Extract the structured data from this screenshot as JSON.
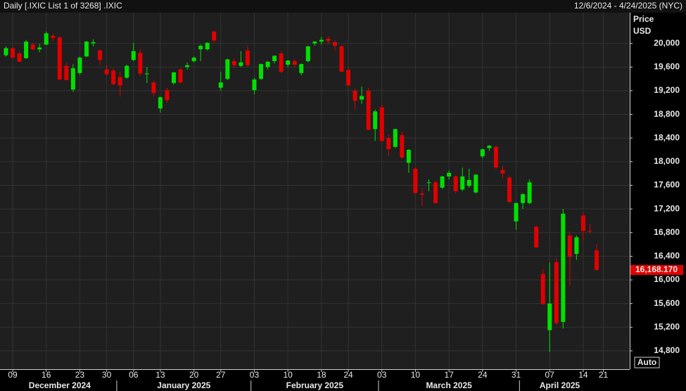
{
  "chart_data": {
    "type": "candlestick",
    "title": "Daily [.IXIC List 1 of 3268] .IXIC",
    "date_range": "12/6/2024 - 4/24/2025 (NYC)",
    "ylabel": "Price",
    "yunit": "USD",
    "scale_button": "Auto",
    "up_color": "#00e000",
    "down_color": "#e00000",
    "ylim": [
      14490,
      20520
    ],
    "yticks": [
      {
        "value": 14800,
        "label": "14,800"
      },
      {
        "value": 15200,
        "label": "15,200"
      },
      {
        "value": 15600,
        "label": "15,600"
      },
      {
        "value": 16000,
        "label": "16,000"
      },
      {
        "value": 16400,
        "label": "16,400"
      },
      {
        "value": 16800,
        "label": "16,800"
      },
      {
        "value": 17200,
        "label": "17,200"
      },
      {
        "value": 17600,
        "label": "17,600"
      },
      {
        "value": 18000,
        "label": "18,000"
      },
      {
        "value": 18400,
        "label": "18,400"
      },
      {
        "value": 18800,
        "label": "18,800"
      },
      {
        "value": 19200,
        "label": "19,200"
      },
      {
        "value": 19600,
        "label": "19,600"
      },
      {
        "value": 20000,
        "label": "20,000"
      }
    ],
    "xticks": [
      {
        "value": "12/9/2024",
        "label": "09"
      },
      {
        "value": "12/16/2024",
        "label": "16"
      },
      {
        "value": "12/23/2024",
        "label": "23"
      },
      {
        "value": "12/30/2024",
        "label": "30"
      },
      {
        "value": "1/6/2025",
        "label": "06"
      },
      {
        "value": "1/13/2025",
        "label": "13"
      },
      {
        "value": "1/20/2025",
        "label": "20"
      },
      {
        "value": "1/27/2025",
        "label": "27"
      },
      {
        "value": "2/3/2025",
        "label": "03"
      },
      {
        "value": "2/10/2025",
        "label": "10"
      },
      {
        "value": "2/18/2025",
        "label": "18"
      },
      {
        "value": "2/24/2025",
        "label": "24"
      },
      {
        "value": "3/3/2025",
        "label": "03"
      },
      {
        "value": "3/10/2025",
        "label": "10"
      },
      {
        "value": "3/17/2025",
        "label": "17"
      },
      {
        "value": "3/24/2025",
        "label": "24"
      },
      {
        "value": "3/31/2025",
        "label": "31"
      },
      {
        "value": "4/7/2025",
        "label": "07"
      },
      {
        "value": "4/14/2025",
        "label": "14"
      },
      {
        "value": "4/21/2025",
        "label": "21"
      }
    ],
    "months": [
      "December 2024",
      "January 2025",
      "February 2025",
      "March 2025",
      "April 2025"
    ],
    "last_price": {
      "value": 16168.17,
      "label": "16,168.170"
    },
    "categories": [
      "12/6/2024",
      "12/9/2024",
      "12/10/2024",
      "12/11/2024",
      "12/12/2024",
      "12/13/2024",
      "12/16/2024",
      "12/17/2024",
      "12/18/2024",
      "12/19/2024",
      "12/20/2024",
      "12/23/2024",
      "12/24/2024",
      "12/26/2024",
      "12/27/2024",
      "12/30/2024",
      "12/31/2024",
      "1/2/2025",
      "1/3/2025",
      "1/6/2025",
      "1/7/2025",
      "1/8/2025",
      "1/10/2025",
      "1/13/2025",
      "1/14/2025",
      "1/15/2025",
      "1/16/2025",
      "1/17/2025",
      "1/21/2025",
      "1/22/2025",
      "1/23/2025",
      "1/24/2025",
      "1/27/2025",
      "1/28/2025",
      "1/29/2025",
      "1/30/2025",
      "1/31/2025",
      "2/3/2025",
      "2/4/2025",
      "2/5/2025",
      "2/6/2025",
      "2/7/2025",
      "2/10/2025",
      "2/11/2025",
      "2/12/2025",
      "2/13/2025",
      "2/14/2025",
      "2/18/2025",
      "2/19/2025",
      "2/20/2025",
      "2/21/2025",
      "2/24/2025",
      "2/25/2025",
      "2/26/2025",
      "2/27/2025",
      "2/28/2025",
      "3/3/2025",
      "3/4/2025",
      "3/5/2025",
      "3/6/2025",
      "3/7/2025",
      "3/10/2025",
      "3/11/2025",
      "3/12/2025",
      "3/13/2025",
      "3/14/2025",
      "3/17/2025",
      "3/18/2025",
      "3/19/2025",
      "3/20/2025",
      "3/21/2025",
      "3/24/2025",
      "3/25/2025",
      "3/26/2025",
      "3/27/2025",
      "3/28/2025",
      "3/31/2025",
      "4/1/2025",
      "4/2/2025",
      "4/3/2025",
      "4/4/2025",
      "4/7/2025",
      "4/8/2025",
      "4/9/2025",
      "4/10/2025",
      "4/11/2025",
      "4/14/2025",
      "4/15/2025",
      "4/16/2025"
    ],
    "open": [
      19800,
      19920,
      19830,
      19750,
      19980,
      19900,
      19980,
      20130,
      20100,
      19620,
      19220,
      19500,
      19780,
      20000,
      19880,
      19560,
      19540,
      19430,
      19420,
      19720,
      19840,
      19490,
      19340,
      18900,
      19210,
      19330,
      19560,
      19600,
      19700,
      19900,
      19900,
      20200,
      19250,
      19400,
      19700,
      19620,
      19880,
      19210,
      19400,
      19600,
      19700,
      19830,
      19640,
      19700,
      19500,
      19700,
      20000,
      20030,
      20080,
      20020,
      19950,
      19550,
      19200,
      19050,
      19200,
      18550,
      18920,
      18400,
      18250,
      18450,
      17980,
      17880,
      17460,
      17640,
      17650,
      17560,
      17750,
      17750,
      17530,
      17590,
      17480,
      18090,
      18230,
      18250,
      17860,
      17730,
      16990,
      17300,
      17300,
      16900,
      16100,
      15150,
      16300,
      15290,
      16750,
      16440,
      17090,
      16830,
      16500
    ],
    "high": [
      19950,
      19940,
      19860,
      20060,
      20010,
      19990,
      20200,
      20160,
      20120,
      19680,
      19650,
      19780,
      20040,
      20070,
      19900,
      19640,
      19580,
      19520,
      19640,
      20010,
      19900,
      19600,
      19370,
      19100,
      19250,
      19520,
      19580,
      19680,
      19780,
      19980,
      20020,
      20210,
      19520,
      19740,
      19740,
      19870,
      19960,
      19420,
      19660,
      19700,
      19800,
      19870,
      19720,
      19730,
      19660,
      19960,
      20040,
      20110,
      20120,
      20050,
      19970,
      19600,
      19240,
      19270,
      19250,
      18880,
      18960,
      18460,
      18560,
      18510,
      18210,
      17900,
      17560,
      17700,
      17680,
      17760,
      17850,
      17770,
      17900,
      17880,
      17790,
      18220,
      18280,
      18270,
      17930,
      17760,
      17310,
      17470,
      17700,
      16920,
      16180,
      16300,
      16370,
      17200,
      16820,
      16750,
      17140,
      16950,
      16600
    ],
    "low": [
      19780,
      19740,
      19680,
      19740,
      19890,
      19850,
      19970,
      20040,
      19380,
      19370,
      19180,
      19470,
      19770,
      19950,
      19640,
      19450,
      19300,
      19100,
      19400,
      19700,
      19450,
      19330,
      19100,
      18830,
      19000,
      19300,
      19320,
      19560,
      19680,
      19700,
      19880,
      20010,
      19200,
      19380,
      19580,
      19600,
      19610,
      19140,
      19380,
      19560,
      19660,
      19500,
      19600,
      19600,
      19460,
      19680,
      19960,
      19980,
      19990,
      19880,
      19510,
      19280,
      18880,
      18980,
      18530,
      18350,
      18330,
      18100,
      18230,
      18050,
      17810,
      17460,
      17250,
      17500,
      17290,
      17540,
      17700,
      17470,
      17500,
      17560,
      17460,
      18060,
      18180,
      17880,
      17720,
      17300,
      16850,
      17200,
      17280,
      16540,
      15580,
      14780,
      15240,
      15180,
      15900,
      16340,
      16660,
      16780,
      16160
    ],
    "close": [
      19920,
      19760,
      19690,
      20030,
      19900,
      19930,
      20170,
      20090,
      19390,
      19380,
      19580,
      19760,
      20030,
      20020,
      19720,
      19480,
      19310,
      19290,
      19620,
      19870,
      19490,
      19490,
      19160,
      19090,
      19040,
      19510,
      19340,
      19630,
      19760,
      19960,
      20010,
      20050,
      19340,
      19730,
      19630,
      19680,
      19630,
      19390,
      19650,
      19690,
      19790,
      19520,
      19710,
      19640,
      19650,
      19950,
      20030,
      20060,
      20040,
      19960,
      19520,
      19290,
      19030,
      19110,
      18540,
      18850,
      18350,
      18210,
      18550,
      18070,
      18200,
      17470,
      17440,
      17650,
      17300,
      17750,
      17810,
      17500,
      17750,
      17690,
      17780,
      18210,
      18270,
      17900,
      17800,
      17320,
      17300,
      17450,
      17650,
      16550,
      15590,
      15600,
      15270,
      17120,
      16390,
      16720,
      16830,
      16820,
      16168.17
    ]
  }
}
